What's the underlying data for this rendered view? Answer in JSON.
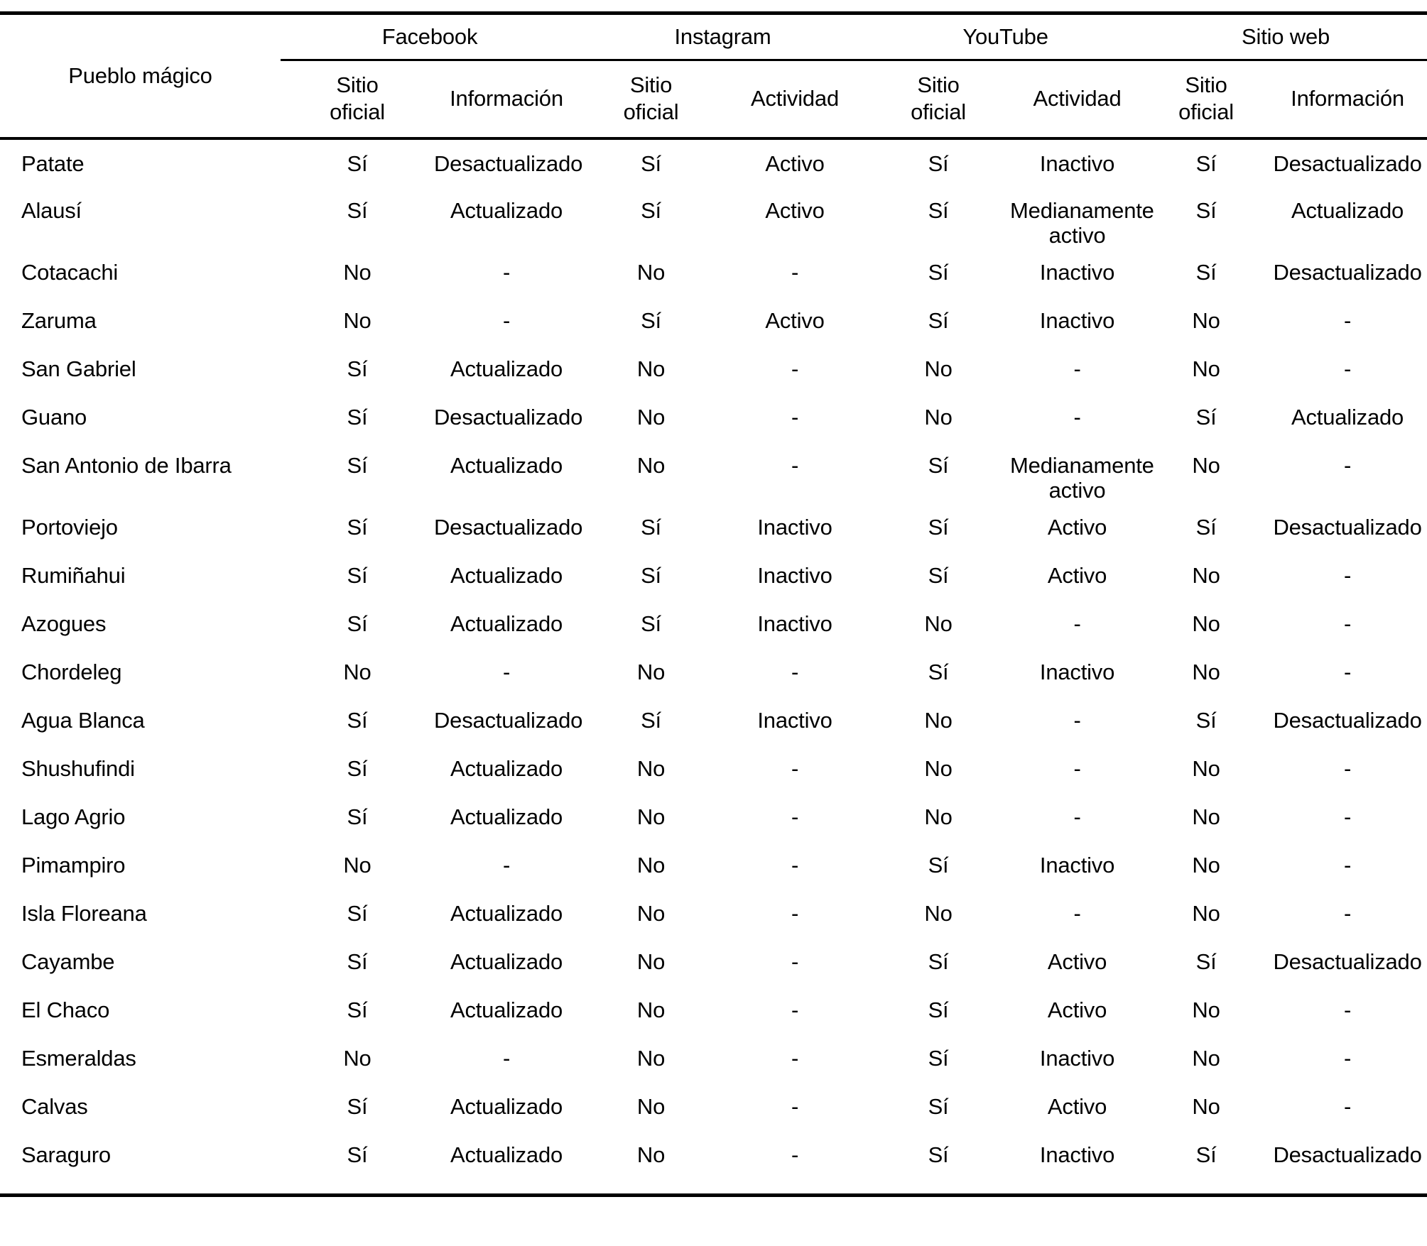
{
  "table": {
    "col1_header": "Pueblo mágico",
    "groups": [
      {
        "label": "Facebook",
        "sub1": "Sitio oficial",
        "sub2": "Información"
      },
      {
        "label": "Instagram",
        "sub1": "Sitio oficial",
        "sub2": "Actividad"
      },
      {
        "label": "YouTube",
        "sub1": "Sitio oficial",
        "sub2": "Actividad"
      },
      {
        "label": "Sitio web",
        "sub1": "Sitio oficial",
        "sub2": "Información"
      }
    ],
    "rows": [
      {
        "name": "Patate",
        "values": [
          "Sí",
          "Desactualizado",
          "Sí",
          "Activo",
          "Sí",
          "Inactivo",
          "Sí",
          "Desactualizado"
        ]
      },
      {
        "name": "Alausí",
        "values": [
          "Sí",
          "Actualizado",
          "Sí",
          "Activo",
          "Sí",
          "Medianamente activo",
          "Sí",
          "Actualizado"
        ]
      },
      {
        "name": "Cotacachi",
        "values": [
          "No",
          "-",
          "No",
          "-",
          "Sí",
          "Inactivo",
          "Sí",
          "Desactualizado"
        ]
      },
      {
        "name": "Zaruma",
        "values": [
          "No",
          "-",
          "Sí",
          "Activo",
          "Sí",
          "Inactivo",
          "No",
          "-"
        ]
      },
      {
        "name": "San Gabriel",
        "values": [
          "Sí",
          "Actualizado",
          "No",
          "-",
          "No",
          "-",
          "No",
          "-"
        ]
      },
      {
        "name": "Guano",
        "values": [
          "Sí",
          "Desactualizado",
          "No",
          "-",
          "No",
          "-",
          "Sí",
          "Actualizado"
        ]
      },
      {
        "name": "San Antonio de Ibarra",
        "values": [
          "Sí",
          "Actualizado",
          "No",
          "-",
          "Sí",
          "Medianamente activo",
          "No",
          "-"
        ]
      },
      {
        "name": "Portoviejo",
        "values": [
          "Sí",
          "Desactualizado",
          "Sí",
          "Inactivo",
          "Sí",
          "Activo",
          "Sí",
          "Desactualizado"
        ]
      },
      {
        "name": "Rumiñahui",
        "values": [
          "Sí",
          "Actualizado",
          "Sí",
          "Inactivo",
          "Sí",
          "Activo",
          "No",
          "-"
        ]
      },
      {
        "name": "Azogues",
        "values": [
          "Sí",
          "Actualizado",
          "Sí",
          "Inactivo",
          "No",
          "-",
          "No",
          "-"
        ]
      },
      {
        "name": "Chordeleg",
        "values": [
          "No",
          "-",
          "No",
          "-",
          "Sí",
          "Inactivo",
          "No",
          "-"
        ]
      },
      {
        "name": "Agua Blanca",
        "values": [
          "Sí",
          "Desactualizado",
          "Sí",
          "Inactivo",
          "No",
          "-",
          "Sí",
          "Desactualizado"
        ]
      },
      {
        "name": "Shushufindi",
        "values": [
          "Sí",
          "Actualizado",
          "No",
          "-",
          "No",
          "-",
          "No",
          "-"
        ]
      },
      {
        "name": "Lago Agrio",
        "values": [
          "Sí",
          "Actualizado",
          "No",
          "-",
          "No",
          "-",
          "No",
          "-"
        ]
      },
      {
        "name": "Pimampiro",
        "values": [
          "No",
          "-",
          "No",
          "-",
          "Sí",
          "Inactivo",
          "No",
          "-"
        ]
      },
      {
        "name": "Isla Floreana",
        "values": [
          "Sí",
          "Actualizado",
          "No",
          "-",
          "No",
          "-",
          "No",
          "-"
        ]
      },
      {
        "name": "Cayambe",
        "values": [
          "Sí",
          "Actualizado",
          "No",
          "-",
          "Sí",
          "Activo",
          "Sí",
          "Desactualizado"
        ]
      },
      {
        "name": "El Chaco",
        "values": [
          "Sí",
          "Actualizado",
          "No",
          "-",
          "Sí",
          "Activo",
          "No",
          "-"
        ]
      },
      {
        "name": "Esmeraldas",
        "values": [
          "No",
          "-",
          "No",
          "-",
          "Sí",
          "Inactivo",
          "No",
          "-"
        ]
      },
      {
        "name": "Calvas",
        "values": [
          "Sí",
          "Actualizado",
          "No",
          "-",
          "Sí",
          "Activo",
          "No",
          "-"
        ]
      },
      {
        "name": "Saraguro",
        "values": [
          "Sí",
          "Actualizado",
          "No",
          "-",
          "Sí",
          "Inactivo",
          "Sí",
          "Desactualizado"
        ]
      }
    ]
  }
}
